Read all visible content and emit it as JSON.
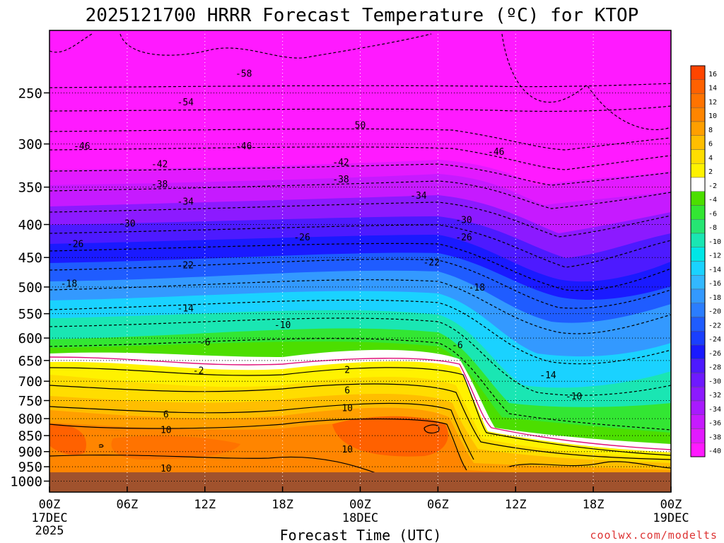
{
  "chart_data": {
    "type": "heatmap",
    "title": "2025121700 HRRR Forecast Temperature (ºC) for KTOP",
    "xlabel": "Forecast Time (UTC)",
    "ylabel": "",
    "credit": "coolwx.com/modelts",
    "x_ticks": [
      {
        "hour": 0,
        "label": "00Z",
        "sub": "17DEC",
        "sub2": "2025"
      },
      {
        "hour": 6,
        "label": "06Z",
        "sub": "",
        "sub2": ""
      },
      {
        "hour": 12,
        "label": "12Z",
        "sub": "",
        "sub2": ""
      },
      {
        "hour": 18,
        "label": "18Z",
        "sub": "",
        "sub2": ""
      },
      {
        "hour": 24,
        "label": "00Z",
        "sub": "18DEC",
        "sub2": ""
      },
      {
        "hour": 30,
        "label": "06Z",
        "sub": "",
        "sub2": ""
      },
      {
        "hour": 36,
        "label": "12Z",
        "sub": "",
        "sub2": ""
      },
      {
        "hour": 42,
        "label": "18Z",
        "sub": "",
        "sub2": ""
      },
      {
        "hour": 48,
        "label": "00Z",
        "sub": "19DEC",
        "sub2": ""
      }
    ],
    "xlim": [
      0,
      48
    ],
    "y_ticks": [
      250,
      300,
      350,
      400,
      450,
      500,
      550,
      600,
      650,
      700,
      750,
      800,
      850,
      900,
      950,
      1000
    ],
    "ylim": [
      200,
      1040
    ],
    "y_scale": "log-pressure",
    "ground_pressure": 976,
    "colorbar": {
      "labels": [
        "16",
        "14",
        "12",
        "10",
        "8",
        "6",
        "4",
        "2",
        "-2",
        "-4",
        "-6",
        "-8",
        "-10",
        "-12",
        "-14",
        "-16",
        "-18",
        "-20",
        "-22",
        "-24",
        "-26",
        "-28",
        "-30",
        "-32",
        "-34",
        "-36",
        "-38",
        "-40"
      ],
      "colors": [
        "#ff4500",
        "#ff6100",
        "#ff7300",
        "#ff8500",
        "#ff9f00",
        "#ffbe00",
        "#ffdd00",
        "#fff200",
        "#ffffff",
        "#4cde00",
        "#33e633",
        "#26e673",
        "#1ae6b3",
        "#00e6e6",
        "#1ad2ff",
        "#33b8ff",
        "#3399ff",
        "#2b7dff",
        "#1f5cff",
        "#1a3fff",
        "#1a1aff",
        "#4d1aff",
        "#6e1aff",
        "#8c1aff",
        "#a81aff",
        "#c61aff",
        "#e21aff",
        "#ff1aff"
      ]
    },
    "contour_labels": [
      {
        "hour": 15,
        "p": 233,
        "label": "-58"
      },
      {
        "hour": 10.5,
        "p": 258,
        "label": "-54"
      },
      {
        "hour": 24,
        "p": 280,
        "label": "50"
      },
      {
        "hour": 2.5,
        "p": 302,
        "label": "-46"
      },
      {
        "hour": 15,
        "p": 302,
        "label": "-46"
      },
      {
        "hour": 34.5,
        "p": 308,
        "label": "-46"
      },
      {
        "hour": 8.5,
        "p": 322,
        "label": "-42"
      },
      {
        "hour": 22.5,
        "p": 320,
        "label": "-42"
      },
      {
        "hour": 8.5,
        "p": 346,
        "label": "-38"
      },
      {
        "hour": 22.5,
        "p": 340,
        "label": "-38"
      },
      {
        "hour": 10.5,
        "p": 368,
        "label": "-34"
      },
      {
        "hour": 28.5,
        "p": 360,
        "label": "-34"
      },
      {
        "hour": 6,
        "p": 398,
        "label": "-30"
      },
      {
        "hour": 32,
        "p": 393,
        "label": "-30"
      },
      {
        "hour": 2,
        "p": 428,
        "label": "-26"
      },
      {
        "hour": 19.5,
        "p": 418,
        "label": "-26"
      },
      {
        "hour": 32,
        "p": 418,
        "label": "-26"
      },
      {
        "hour": 10.5,
        "p": 462,
        "label": "-22"
      },
      {
        "hour": 29.5,
        "p": 457,
        "label": "-22"
      },
      {
        "hour": 1.5,
        "p": 493,
        "label": "-18"
      },
      {
        "hour": 33,
        "p": 500,
        "label": "-18"
      },
      {
        "hour": 10.5,
        "p": 539,
        "label": "-14"
      },
      {
        "hour": 38.5,
        "p": 684,
        "label": "-14"
      },
      {
        "hour": 18,
        "p": 572,
        "label": "-10"
      },
      {
        "hour": 40.5,
        "p": 738,
        "label": "-10"
      },
      {
        "hour": 12,
        "p": 608,
        "label": "-6"
      },
      {
        "hour": 31.5,
        "p": 614,
        "label": "-6"
      },
      {
        "hour": 11.5,
        "p": 673,
        "label": "-2"
      },
      {
        "hour": 23,
        "p": 671,
        "label": "2"
      },
      {
        "hour": 23,
        "p": 722,
        "label": "6"
      },
      {
        "hour": 9,
        "p": 787,
        "label": "6"
      },
      {
        "hour": 23,
        "p": 769,
        "label": "10"
      },
      {
        "hour": 9,
        "p": 832,
        "label": "10"
      },
      {
        "hour": 23,
        "p": 891,
        "label": "10"
      },
      {
        "hour": 9,
        "p": 955,
        "label": "10"
      }
    ]
  }
}
